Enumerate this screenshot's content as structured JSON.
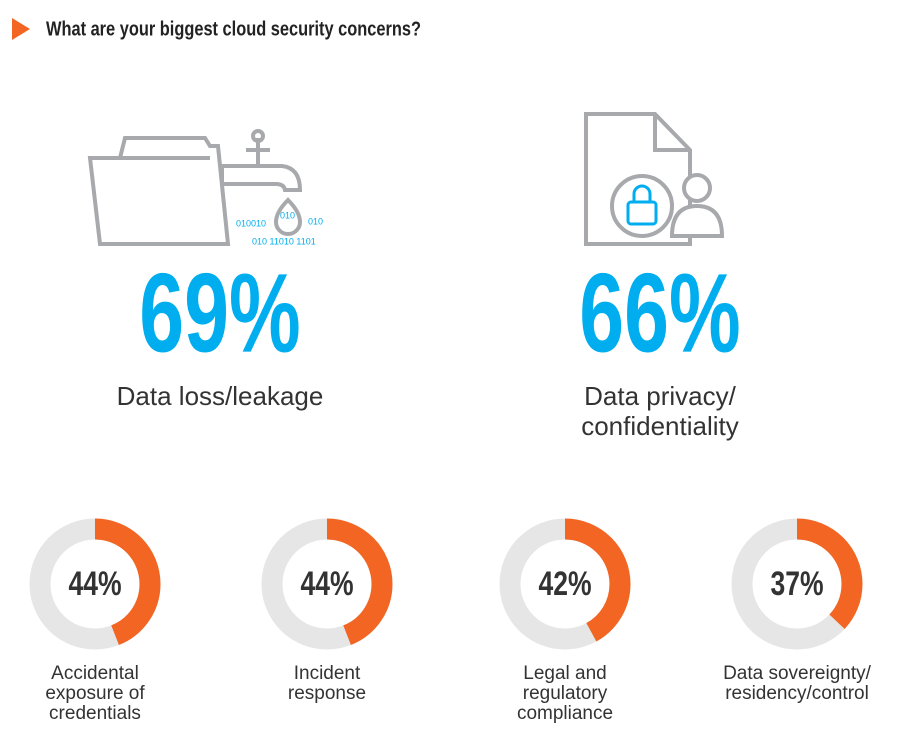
{
  "title": "What are your biggest cloud security concerns?",
  "icon_text": [
    "010010",
    "010",
    "010",
    "010 11010 1101"
  ],
  "chart_data": [
    {
      "type": "stat",
      "categories": [
        "Data loss/leakage",
        "Data privacy/ confidentiality"
      ],
      "values": [
        69,
        66
      ],
      "value_labels": [
        "69%",
        "66%"
      ],
      "color": "#00aeef"
    },
    {
      "type": "donut",
      "categories": [
        "Accidental exposure of credentials",
        "Incident response",
        "Legal and regulatory compliance",
        "Data sovereignty/ residency/control"
      ],
      "values": [
        44,
        44,
        42,
        37
      ],
      "value_labels": [
        "44%",
        "44%",
        "42%",
        "37%"
      ],
      "color": "#f26522",
      "track_color": "#e6e6e7"
    }
  ]
}
